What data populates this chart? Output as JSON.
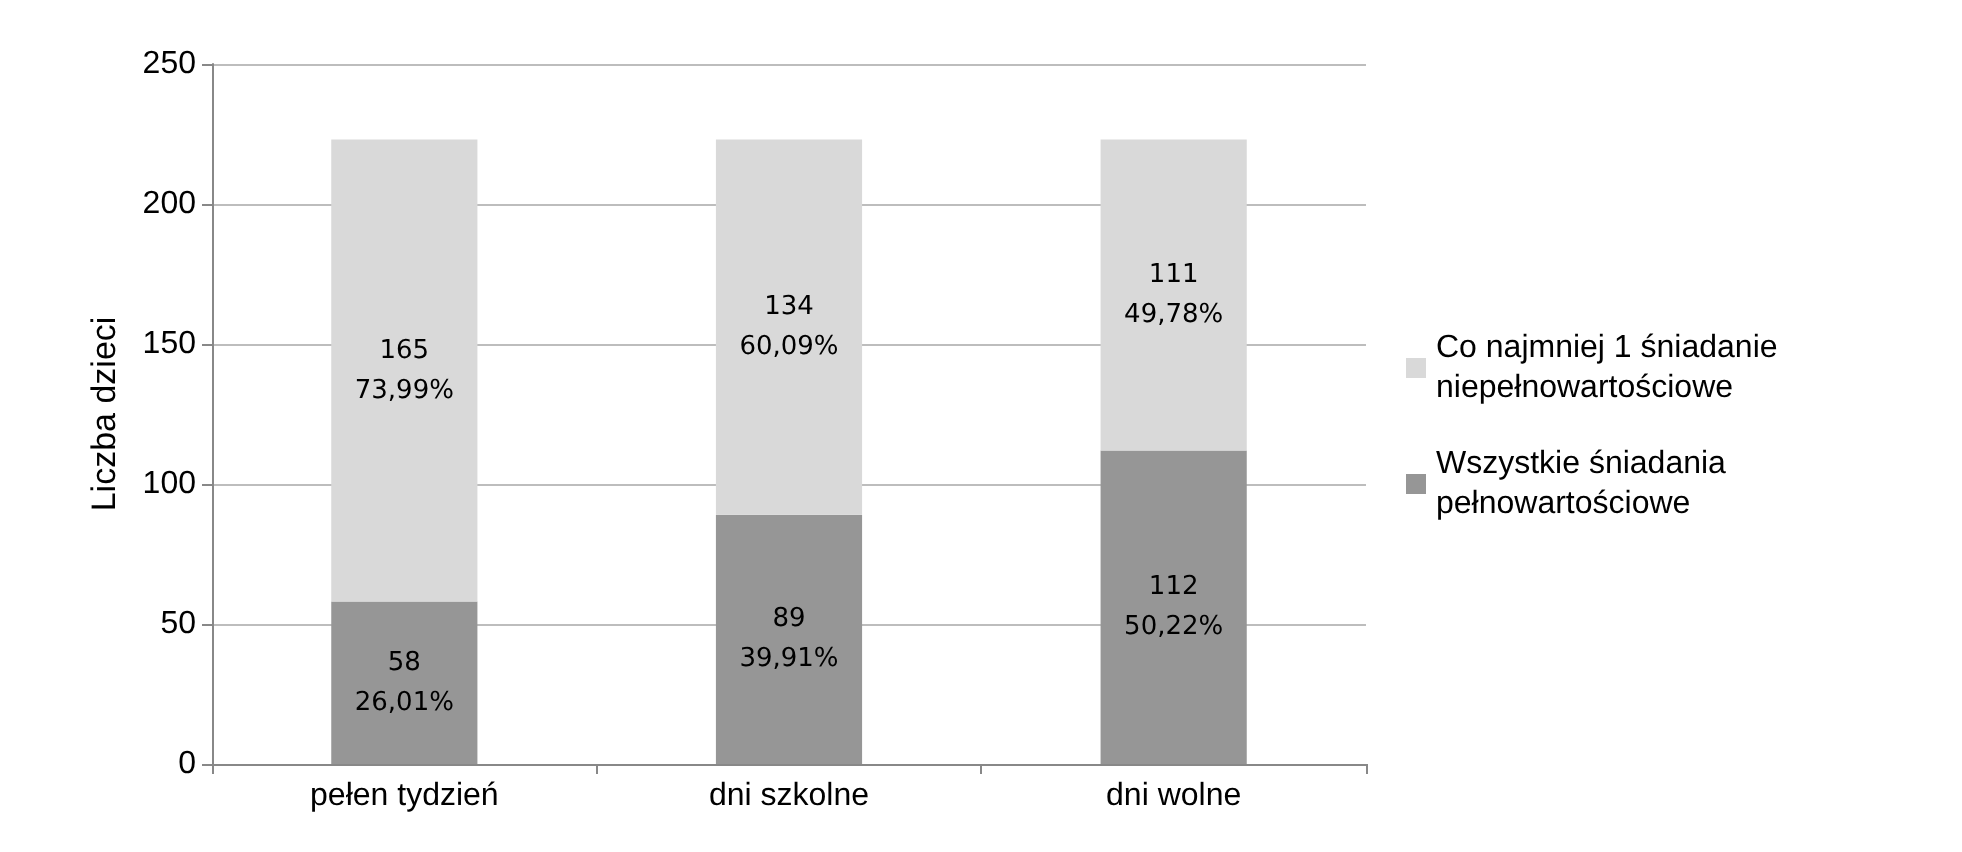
{
  "chart_data": {
    "type": "bar",
    "stacked": true,
    "ylabel": "Liczba dzieci",
    "categories": [
      "pełen tydzień",
      "dni szkolne",
      "dni wolne"
    ],
    "series": [
      {
        "name": "Wszystkie śniadania pełnowartościowe",
        "color": "#969696",
        "values": [
          58,
          89,
          112
        ],
        "value_labels": [
          "58\n26,01%",
          "89\n39,91%",
          "112\n50,22%"
        ]
      },
      {
        "name": "Co najmniej 1 śniadanie niepełnowartościowe",
        "color": "#d9d9d9",
        "values": [
          165,
          134,
          111
        ],
        "value_labels": [
          "165\n73,99%",
          "134\n60,09%",
          "111\n49,78%"
        ]
      }
    ],
    "ylim": [
      0,
      250
    ],
    "yticks": [
      0,
      50,
      100,
      150,
      200,
      250
    ],
    "grid": "y",
    "legend": "right"
  }
}
